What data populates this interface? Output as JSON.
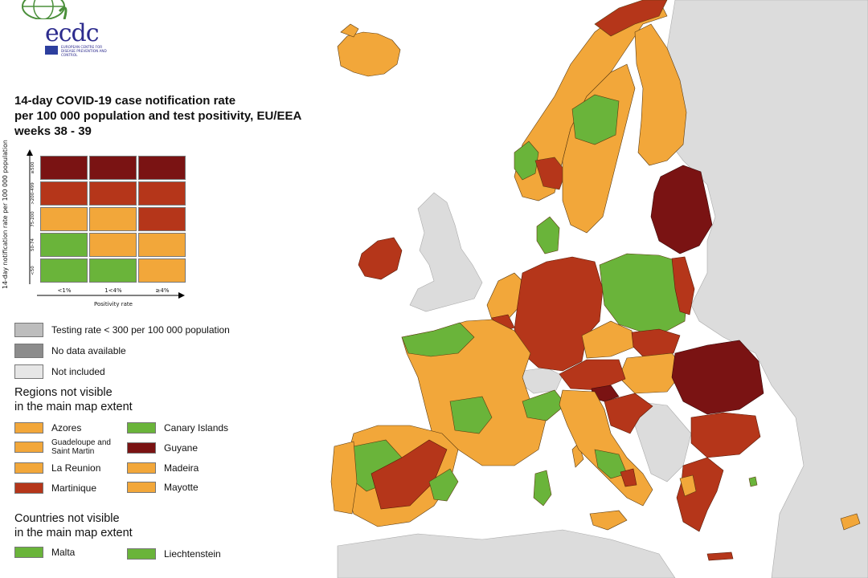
{
  "logo": {
    "text": "ecdc",
    "subtitle": "EUROPEAN CENTRE FOR DISEASE PREVENTION AND CONTROL"
  },
  "title": {
    "line1": "14-day COVID-19 case notification rate",
    "line2": "per 100 000 population and test positivity, EU/EEA",
    "line3": "weeks 38 - 39"
  },
  "matrix": {
    "y_axis_label": "14-day notification rate per 100 000 population",
    "x_axis_label": "Positivity rate",
    "row_labels": [
      "≥500",
      ">200-499",
      "75-200",
      "50-74",
      "<50"
    ],
    "col_labels": [
      "<1%",
      "1<4%",
      "≥4%"
    ],
    "colors": {
      "dark_red": "#7a1313",
      "red": "#b5361a",
      "orange": "#f2a73a",
      "green": "#6ab43a"
    },
    "grid": [
      [
        "dark_red",
        "dark_red",
        "dark_red"
      ],
      [
        "red",
        "red",
        "red"
      ],
      [
        "orange",
        "orange",
        "red"
      ],
      [
        "green",
        "orange",
        "orange"
      ],
      [
        "green",
        "green",
        "orange"
      ]
    ]
  },
  "status_legend": [
    {
      "label": "Testing rate < 300 per 100 000 population",
      "color": "#bdbdbd"
    },
    {
      "label": "No data available",
      "color": "#8c8c8c"
    },
    {
      "label": "Not included",
      "color": "#e6e6e6"
    }
  ],
  "regions_heading": {
    "line1": "Regions not visible",
    "line2": "in the main map extent"
  },
  "regions": [
    {
      "label": "Azores",
      "color": "#f2a73a"
    },
    {
      "label": "Canary Islands",
      "color": "#6ab43a"
    },
    {
      "label": "Guadeloupe and Saint Martin",
      "color": "#f2a73a"
    },
    {
      "label": "Guyane",
      "color": "#7a1313"
    },
    {
      "label": "La Reunion",
      "color": "#f2a73a"
    },
    {
      "label": "Madeira",
      "color": "#f2a73a"
    },
    {
      "label": "Martinique",
      "color": "#b5361a"
    },
    {
      "label": "Mayotte",
      "color": "#f2a73a"
    }
  ],
  "countries_heading": {
    "line1": "Countries not visible",
    "line2": "in the main map extent"
  },
  "countries": [
    {
      "label": "Malta",
      "color": "#6ab43a"
    },
    {
      "label": "Liechtenstein",
      "color": "#6ab43a"
    }
  ]
}
